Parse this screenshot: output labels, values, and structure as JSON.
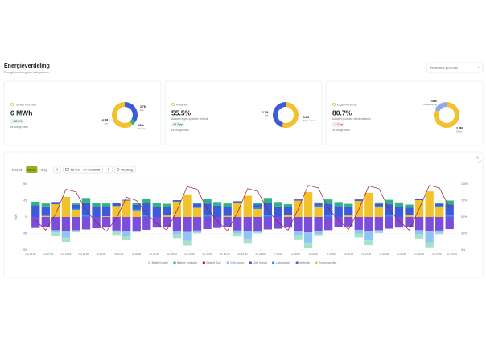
{
  "header": {
    "title": "Energieverdeling",
    "subtitle": "Energieverdeling per subsysteem",
    "location": "Rotterdam productie"
  },
  "cards": [
    {
      "title": "Totaal verbruik",
      "value": "6 MWh",
      "change": "+10.3%",
      "compare": "vs. vorige week",
      "donut": [
        {
          "name": "Net",
          "value": 2700000,
          "label": "2.7M",
          "color": "#3b5bdb"
        },
        {
          "name": "Batterij",
          "value": 459000,
          "label": "459k",
          "color": "#2fb380"
        },
        {
          "name": "Zon",
          "value": 4900000,
          "label": "4.9M",
          "color": "#f2c12e"
        }
      ]
    },
    {
      "title": "Autarkie",
      "value": "55.5%",
      "description": "Aandeel eigen opwek in verbruik",
      "change": "+3.2 pp",
      "compare": "vs. vorige week",
      "donut": [
        {
          "name": "Eigen opwek",
          "value": 3300000,
          "label": "3.3M",
          "color": "#f2c12e"
        },
        {
          "name": "Net",
          "value": 2700000,
          "label": "2.7M",
          "color": "#3b5bdb"
        }
      ]
    },
    {
      "title": "Eigenverbruik",
      "value": "80.7%",
      "description": "Aandeel productie direct verbruikt",
      "change": "-1.0 pp",
      "compare": "vs. vorige week",
      "donut": [
        {
          "name": "Direct",
          "value": 3300000,
          "label": "3.3M",
          "color": "#f2c12e"
        },
        {
          "name": "Teruglevering",
          "value": 756000,
          "label": "756k",
          "color": "#8fa8f0"
        }
      ]
    }
  ],
  "toolbar": {
    "views": [
      "Maand",
      "Week",
      "Dag"
    ],
    "active_view": 1,
    "date_range": "18 mei – 24 mei 2026",
    "today": "Vandaag"
  },
  "chart_data": {
    "type": "bar",
    "stacked": true,
    "ylabel": "kWh",
    "grid": true,
    "x": [
      0,
      4,
      8,
      12,
      16,
      20,
      24,
      28,
      32,
      36,
      40,
      44,
      48,
      52,
      56,
      60,
      64,
      68,
      72,
      76,
      80,
      84,
      88,
      92,
      96,
      100,
      104,
      108,
      112,
      116,
      120,
      124,
      128,
      132,
      136,
      140,
      144,
      148,
      152,
      156,
      160,
      164
    ],
    "xlim": [
      0,
      168
    ],
    "xticks": [
      {
        "value": 0,
        "label": "ma 00:00"
      },
      {
        "value": 7,
        "label": "ma 07:00"
      },
      {
        "value": 14,
        "label": "ma 14:00"
      },
      {
        "value": 21,
        "label": "ma 21:00"
      },
      {
        "value": 28,
        "label": "di 04:00"
      },
      {
        "value": 35,
        "label": "di 11:00"
      },
      {
        "value": 42,
        "label": "di 18:00"
      },
      {
        "value": 49,
        "label": "wo 01:00"
      },
      {
        "value": 56,
        "label": "wo 08:00"
      },
      {
        "value": 63,
        "label": "wo 15:00"
      },
      {
        "value": 70,
        "label": "wo 22:00"
      },
      {
        "value": 77,
        "label": "do 05:00"
      },
      {
        "value": 84,
        "label": "do 12:00"
      },
      {
        "value": 91,
        "label": "do 19:00"
      },
      {
        "value": 98,
        "label": "vr 02:00"
      },
      {
        "value": 105,
        "label": "vr 09:00"
      },
      {
        "value": 112,
        "label": "vr 16:00"
      },
      {
        "value": 119,
        "label": "vr 23:00"
      },
      {
        "value": 126,
        "label": "za 06:00"
      },
      {
        "value": 133,
        "label": "za 13:00"
      },
      {
        "value": 140,
        "label": "za 20:00"
      },
      {
        "value": 147,
        "label": "zo 03:00"
      },
      {
        "value": 154,
        "label": "zo 10:00"
      },
      {
        "value": 161,
        "label": "zo 17:00"
      },
      {
        "value": 167,
        "label": "zo 23:00"
      }
    ],
    "ylim": [
      -90,
      90
    ],
    "yticks": [
      90,
      45,
      0,
      -45,
      -90
    ],
    "y2lim": [
      0,
      100
    ],
    "y2ticks": [
      {
        "value": 100,
        "label": "100%"
      },
      {
        "value": 75,
        "label": "75%"
      },
      {
        "value": 50,
        "label": "50%"
      },
      {
        "value": 25,
        "label": "25%"
      },
      {
        "value": 0,
        "label": "0%"
      }
    ],
    "series": [
      {
        "name": "Batterij laden",
        "color": "#a5e3c8",
        "values": [
          0,
          0,
          -10,
          -12,
          -3,
          0,
          0,
          0,
          -8,
          -10,
          -2,
          0,
          0,
          0,
          -11,
          -13,
          -3,
          0,
          0,
          0,
          -9,
          -12,
          -3,
          0,
          0,
          0,
          -12,
          -14,
          -4,
          0,
          0,
          0,
          -11,
          -13,
          -3,
          0,
          0,
          0,
          -12,
          -14,
          -4,
          0
        ]
      },
      {
        "name": "Batterij ontladen",
        "color": "#2fb380",
        "values": [
          10,
          8,
          0,
          0,
          4,
          12,
          9,
          7,
          1,
          0,
          5,
          11,
          11,
          8,
          0,
          0,
          3,
          12,
          10,
          9,
          0,
          0,
          4,
          13,
          12,
          8,
          0,
          0,
          3,
          12,
          11,
          9,
          0,
          0,
          4,
          12,
          12,
          8,
          0,
          0,
          3,
          11
        ]
      },
      {
        "name": "Batterij SoC",
        "color": "#9b1c3a",
        "axis": "y2",
        "type": "line",
        "values": [
          45,
          30,
          55,
          92,
          88,
          60,
          42,
          28,
          48,
          80,
          75,
          55,
          40,
          30,
          60,
          96,
          92,
          62,
          44,
          29,
          57,
          93,
          89,
          60,
          42,
          30,
          62,
          98,
          94,
          63,
          45,
          31,
          61,
          97,
          93,
          62,
          44,
          30,
          63,
          98,
          94,
          64
        ]
      },
      {
        "name": "Grid export",
        "color": "#8ec5f5",
        "values": [
          0,
          0,
          -6,
          -18,
          -3,
          0,
          0,
          0,
          -4,
          -12,
          -2,
          0,
          0,
          0,
          -9,
          -24,
          -5,
          0,
          0,
          0,
          -7,
          -20,
          -4,
          0,
          0,
          0,
          -10,
          -28,
          -6,
          0,
          0,
          0,
          -10,
          -26,
          -5,
          0,
          0,
          0,
          -11,
          -30,
          -6,
          0
        ]
      },
      {
        "name": "Grid import",
        "color": "#3b5bdb",
        "values": [
          32,
          26,
          6,
          0,
          10,
          36,
          30,
          28,
          8,
          2,
          12,
          34,
          28,
          24,
          4,
          0,
          8,
          33,
          31,
          25,
          5,
          0,
          9,
          35,
          29,
          22,
          3,
          0,
          6,
          32,
          30,
          23,
          4,
          0,
          7,
          31,
          28,
          21,
          3,
          0,
          6,
          30
        ]
      },
      {
        "name": "Laadpunten",
        "color": "#228be6",
        "values": [
          0,
          0,
          0,
          0,
          3,
          4,
          0,
          0,
          0,
          0,
          3,
          4,
          0,
          0,
          0,
          0,
          3,
          4,
          0,
          0,
          0,
          0,
          3,
          4,
          0,
          0,
          0,
          0,
          3,
          4,
          0,
          0,
          0,
          0,
          3,
          4,
          0,
          0,
          0,
          0,
          3,
          4
        ]
      },
      {
        "name": "Verbruik",
        "color": "#7c4ddb",
        "values": [
          -30,
          -28,
          -36,
          -38,
          -36,
          -34,
          -31,
          -29,
          -37,
          -40,
          -38,
          -35,
          -29,
          -27,
          -38,
          -41,
          -37,
          -33,
          -30,
          -28,
          -37,
          -39,
          -38,
          -34,
          -32,
          -29,
          -39,
          -42,
          -40,
          -36,
          -28,
          -26,
          -35,
          -38,
          -36,
          -32,
          -29,
          -27,
          -36,
          -39,
          -37,
          -33
        ]
      },
      {
        "name": "Zonnepanelen",
        "color": "#f2c12e",
        "values": [
          0,
          3,
          35,
          55,
          20,
          0,
          0,
          2,
          30,
          45,
          18,
          0,
          0,
          4,
          42,
          62,
          25,
          0,
          0,
          3,
          38,
          58,
          22,
          0,
          0,
          5,
          45,
          68,
          28,
          0,
          0,
          4,
          44,
          66,
          26,
          0,
          0,
          5,
          46,
          70,
          27,
          0
        ]
      }
    ]
  }
}
